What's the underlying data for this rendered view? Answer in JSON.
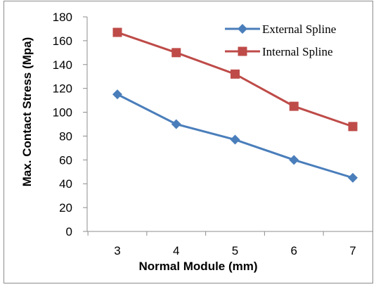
{
  "chart_data": {
    "type": "line",
    "x": [
      3,
      4,
      5,
      6,
      7
    ],
    "xlabel": "Normal Module (mm)",
    "ylabel": "Max. Contact Stress (Mpa)",
    "ylim": [
      0,
      180
    ],
    "y_ticks": [
      0,
      20,
      40,
      60,
      80,
      100,
      120,
      140,
      160,
      180
    ],
    "x_tick_labels": [
      "3",
      "4",
      "5",
      "6",
      "7"
    ],
    "grid": "none",
    "legend_position": "top-right",
    "series": [
      {
        "name": "External Spline",
        "values": [
          115,
          90,
          77,
          60,
          45
        ],
        "color": "#4a7ebb",
        "marker": "diamond"
      },
      {
        "name": "Internal Spline",
        "values": [
          167,
          150,
          132,
          105,
          88
        ],
        "color": "#be4b48",
        "marker": "square"
      }
    ]
  }
}
